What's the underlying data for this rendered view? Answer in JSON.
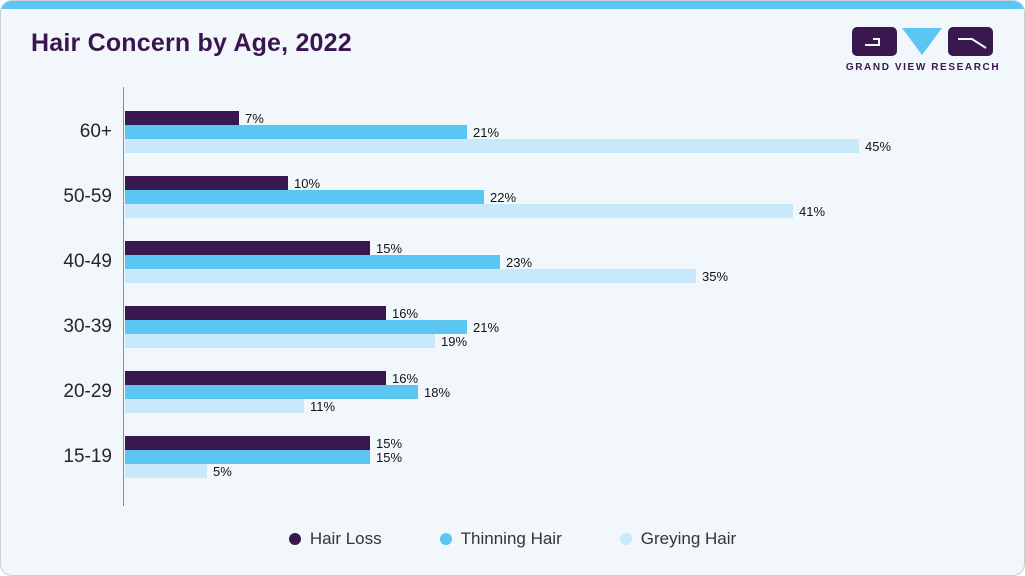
{
  "header": {
    "title": "Hair Concern by Age, 2022"
  },
  "logo": {
    "text": "GRAND VIEW RESEARCH",
    "icon": "grand-view-research-logo",
    "purple": "#38184e",
    "blue": "#5bc6f2"
  },
  "colors": {
    "card_background": "#f1f7fb",
    "top_strip": "#5bc6f2",
    "title": "#3b1550",
    "axis": "#8e8e8e",
    "hair_loss": "#38184e",
    "thinning_hair": "#5bc6f2",
    "greying_hair": "#c7e9fb"
  },
  "chart_data": {
    "type": "bar",
    "orientation": "horizontal",
    "title": "Hair Concern by Age, 2022",
    "categories": [
      "60+",
      "50-59",
      "40-49",
      "30-39",
      "20-29",
      "15-19"
    ],
    "series": [
      {
        "name": "Hair Loss",
        "color": "#38184e",
        "values": [
          7,
          10,
          15,
          16,
          16,
          15
        ]
      },
      {
        "name": "Thinning Hair",
        "color": "#5bc6f2",
        "values": [
          21,
          22,
          23,
          21,
          18,
          15
        ]
      },
      {
        "name": "Greying Hair",
        "color": "#c7e9fb",
        "values": [
          45,
          41,
          35,
          19,
          11,
          5
        ]
      }
    ],
    "value_suffix": "%",
    "xlim": [
      0,
      55
    ],
    "grid": false,
    "legend_position": "bottom",
    "data_labels": true
  }
}
